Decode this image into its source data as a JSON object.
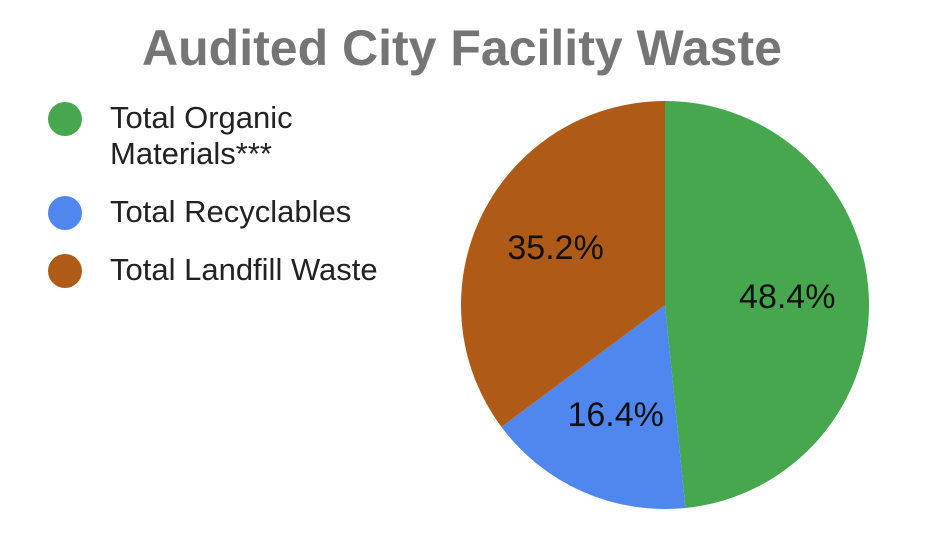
{
  "chart_data": {
    "type": "pie",
    "title": "Audited City Facility Waste",
    "categories": [
      "Total Organic Materials***",
      "Total Recyclables",
      "Total Landfill Waste"
    ],
    "values": [
      48.4,
      16.4,
      35.2
    ],
    "value_labels": [
      "48.4%",
      "16.4%",
      "35.2%"
    ],
    "colors": [
      "#46a74f",
      "#5087ef",
      "#b05a17"
    ],
    "legend": "left"
  }
}
